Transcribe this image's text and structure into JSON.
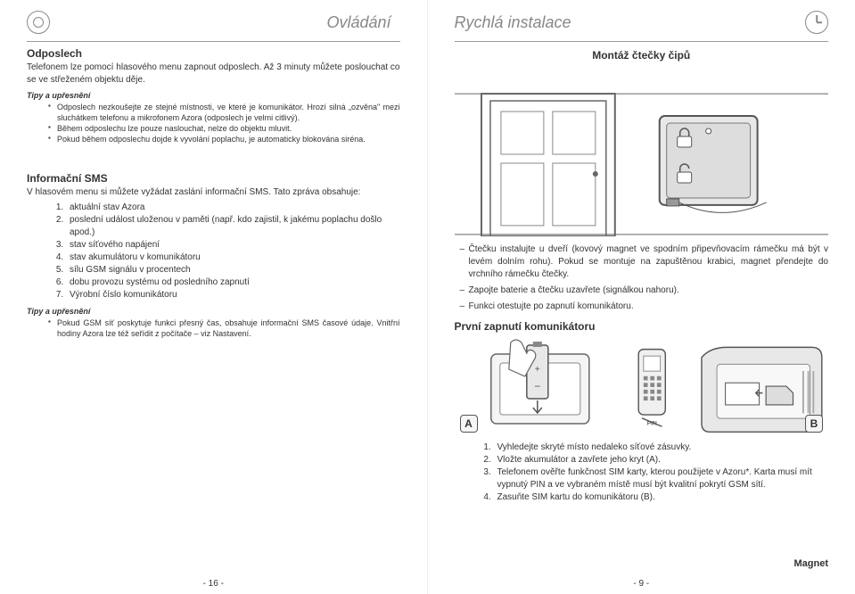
{
  "left": {
    "header": "Ovládání",
    "sec1_title": "Odposlech",
    "sec1_body": "Telefonem lze pomocí hlasového menu zapnout odposlech. Až 3 minuty můžete poslouchat co se ve střeženém objektu děje.",
    "tips_label": "Tipy a upřesnění",
    "tips1": [
      "Odposlech nezkoušejte ze stejné místnosti, ve které je komunikátor. Hrozí silná „ozvěna\" mezi sluchátkem telefonu a mikrofonem Azora (odposlech je velmi citlivý).",
      "Během odposlechu lze pouze naslouchat, nelze do objektu mluvit.",
      "Pokud během odposlechu dojde k vyvolání poplachu, je automaticky blokována siréna."
    ],
    "sec2_title": "Informační SMS",
    "sec2_body": "V hlasovém menu si můžete vyžádat zaslání informační SMS. Tato zpráva obsahuje:",
    "list2": [
      "aktuální stav Azora",
      "poslední událost uloženou v paměti (např. kdo zajistil, k jakému poplachu došlo apod.)",
      "stav síťového napájení",
      "stav akumulátoru v komunikátoru",
      "sílu GSM signálu v procentech",
      "dobu provozu systému od posledního zapnutí",
      "Výrobní číslo komunikátoru"
    ],
    "tips2": [
      "Pokud GSM síť poskytuje funkci přesný čas, obsahuje informační SMS časové údaje. Vnitřní hodiny Azora lze též seřídit z počítače – viz Nastavení."
    ],
    "page_num": "- 16 -"
  },
  "right": {
    "header": "Rychlá instalace",
    "sub1": "Montáž čtečky čipů",
    "magnet_label": "Magnet",
    "dash_list": [
      "Čtečku instalujte u dveří (kovový magnet ve spodním připevňovacím rámečku má být v levém dolním rohu). Pokud se montuje na zapuštěnou krabici, magnet přendejte do vrchního rámečku čtečky.",
      "Zapojte baterie a čtečku uzavřete (signálkou nahoru).",
      "Funkci otestujte po zapnutí komunikátoru."
    ],
    "sub2": "První zapnutí komunikátoru",
    "badge_a": "A",
    "badge_b": "B",
    "pin_label": "PIN",
    "num_list": [
      "Vyhledejte skryté místo nedaleko síťové zásuvky.",
      "Vložte akumulátor a zavřete jeho kryt (A).",
      "Telefonem ověřte funkčnost SIM karty, kterou použijete v Azoru*. Karta musí mít vypnutý PIN a  ve vybraném místě musí být kvalitní pokrytí GSM sítí.",
      "Zasuňte SIM kartu do komunikátoru (B)."
    ],
    "page_num": "- 9 -"
  },
  "colors": {
    "stroke": "#666666",
    "light": "#aaaaaa",
    "fill": "#e8e8e8"
  }
}
